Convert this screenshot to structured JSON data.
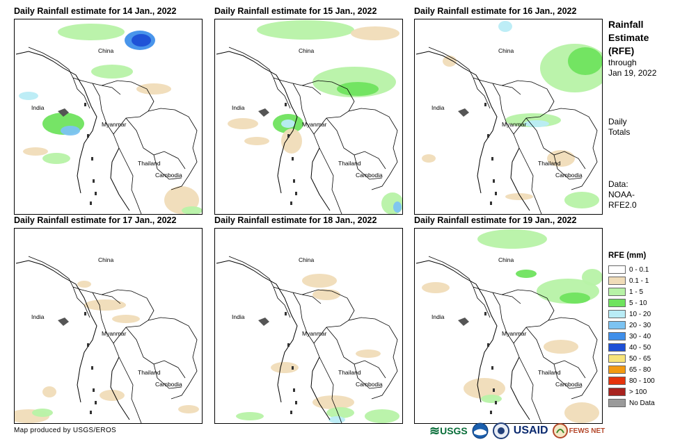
{
  "panels": [
    {
      "title": "Daily Rainfall estimate for 14 Jan., 2022",
      "variant": 0
    },
    {
      "title": "Daily Rainfall estimate for 15 Jan., 2022",
      "variant": 1
    },
    {
      "title": "Daily Rainfall estimate for 16 Jan., 2022",
      "variant": 2
    },
    {
      "title": "Daily Rainfall estimate for 17 Jan., 2022",
      "variant": 3
    },
    {
      "title": "Daily Rainfall estimate for 18 Jan., 2022",
      "variant": 4
    },
    {
      "title": "Daily Rainfall estimate for 19 Jan., 2022",
      "variant": 5
    }
  ],
  "map_labels": {
    "china": "China",
    "india": "India",
    "myanmar": "Myanmar",
    "thailand": "Thailand",
    "cambodia": "Cambodia"
  },
  "sidebar": {
    "title_line1": "Rainfall",
    "title_line2": "Estimate",
    "title_line3": "(RFE)",
    "through_label": "through",
    "through_date": "Jan 19, 2022",
    "totals_line1": "Daily",
    "totals_line2": "Totals",
    "data_line1": "Data:",
    "data_line2": "NOAA-",
    "data_line3": "RFE2.0"
  },
  "legend": {
    "title": "RFE (mm)",
    "items": [
      {
        "label": "0 - 0.1",
        "color": "#ffffff"
      },
      {
        "label": "0.1 - 1",
        "color": "#f0dcb8"
      },
      {
        "label": "1 - 5",
        "color": "#b7f2a6"
      },
      {
        "label": "5 - 10",
        "color": "#6fe35e"
      },
      {
        "label": "10 - 20",
        "color": "#b9ecf6"
      },
      {
        "label": "20 - 30",
        "color": "#7cc3f2"
      },
      {
        "label": "30 - 40",
        "color": "#3f8fea"
      },
      {
        "label": "40 - 50",
        "color": "#1d4fd6"
      },
      {
        "label": "50 - 65",
        "color": "#f7e47a"
      },
      {
        "label": "65 - 80",
        "color": "#f29a12"
      },
      {
        "label": "80 - 100",
        "color": "#e5340c"
      },
      {
        "label": "> 100",
        "color": "#a8231e"
      },
      {
        "label": "No Data",
        "color": "#9a9a9a"
      }
    ]
  },
  "footer": {
    "credit": "Map produced by USGS/EROS",
    "logos": [
      "USGS",
      "NOAA",
      "USAID",
      "FEWS NET"
    ]
  }
}
